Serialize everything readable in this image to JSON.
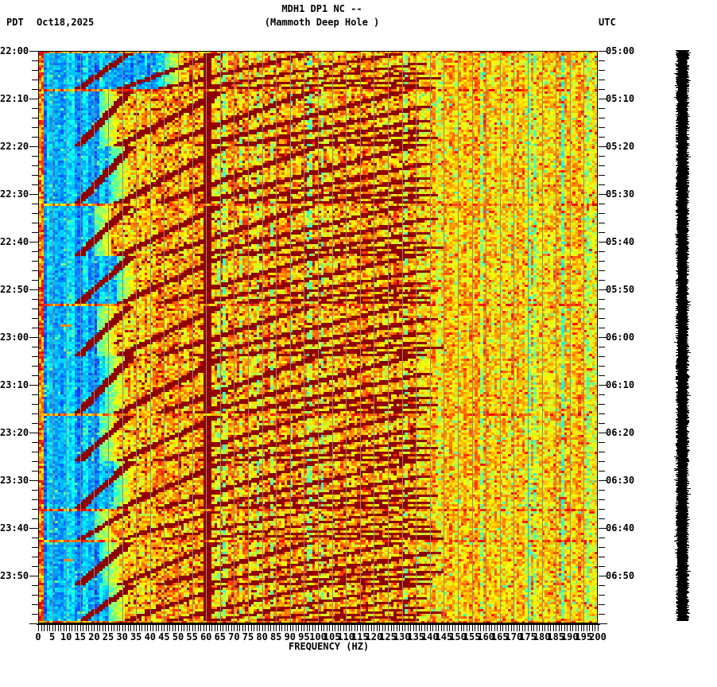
{
  "header": {
    "tz_left": "PDT",
    "date": "Oct18,2025",
    "title": "MDH1 DP1 NC --",
    "subtitle": "(Mammoth Deep Hole )",
    "tz_right": "UTC"
  },
  "chart_data": {
    "type": "heatmap",
    "subtype": "seismic-spectrogram",
    "title": "MDH1 DP1 NC --",
    "subtitle": "(Mammoth Deep Hole )",
    "date_label": "Oct18,2025",
    "xlabel": "FREQUENCY (HZ)",
    "xlim": [
      0,
      200
    ],
    "x_tick_step_hz": 5,
    "x_minor_tick_step_hz": 1,
    "x_tick_labels": [
      0,
      5,
      10,
      15,
      20,
      25,
      30,
      35,
      40,
      45,
      50,
      55,
      60,
      65,
      70,
      75,
      80,
      85,
      90,
      95,
      100,
      105,
      110,
      115,
      120,
      125,
      130,
      135,
      140,
      145,
      150,
      155,
      160,
      165,
      170,
      175,
      180,
      185,
      190,
      195,
      200
    ],
    "y_axis_left": {
      "timezone": "PDT",
      "start": "22:00",
      "end": "24:00",
      "major_tick_minutes": 10,
      "minor_tick_minutes": 2,
      "ticks": [
        "22:00",
        "22:10",
        "22:20",
        "22:30",
        "22:40",
        "22:50",
        "23:00",
        "23:10",
        "23:20",
        "23:30",
        "23:40",
        "23:50"
      ]
    },
    "y_axis_right": {
      "timezone": "UTC",
      "start": "05:00",
      "end": "07:00",
      "major_tick_minutes": 10,
      "minor_tick_minutes": 2,
      "ticks": [
        "05:00",
        "05:10",
        "05:20",
        "05:30",
        "05:40",
        "05:50",
        "06:00",
        "06:10",
        "06:20",
        "06:30",
        "06:40",
        "06:50"
      ]
    },
    "colormap": "jet",
    "colors": {
      "background": "#ffffff",
      "axis": "#000000",
      "gridline": "#8a8a8a",
      "low_band": "#00b4ff",
      "mid_band": "#ff8c00",
      "saturated": "#8b0000",
      "trace": "#000000"
    },
    "grid_vertical_every_hz": 5,
    "pattern": {
      "quiet_low_band_hz": [
        0,
        20
      ],
      "broadband_noise_hz": [
        20,
        135
      ],
      "speckle_band_hz": [
        135,
        200
      ],
      "mains_hum_hz": 60,
      "fundamental_sweep_hz": [
        33,
        14
      ],
      "harmonic_count": 10,
      "segment_boundaries_min": [
        0,
        8,
        20,
        32,
        43,
        53,
        64,
        76,
        86,
        96,
        102.5,
        112,
        120
      ],
      "bright_reset_lines_min": [
        0,
        8,
        32,
        53,
        76,
        96,
        102.5,
        119.5
      ],
      "cyan_boundary_hz_per_segment": [
        45,
        22,
        26,
        20,
        28,
        21,
        24,
        22,
        27,
        20,
        23,
        25
      ],
      "description": "Spectrogram of station MDH1 DP1 NC (Mammoth Deep Hole): quiet blue/cyan band below ~20 Hz, broadband orange/red energy 20-135 Hz containing repeating dark-red descending harmonic bands, a dark-red vertical 60 Hz mains line, yellow/orange speckle above 135 Hz, gray gridlines every 5 Hz, and a clipped solid-black seismogram amplitude trace bar at right."
    }
  },
  "trace_bar": {
    "name": "clipped seismogram amplitude trace",
    "color": "#000000"
  }
}
